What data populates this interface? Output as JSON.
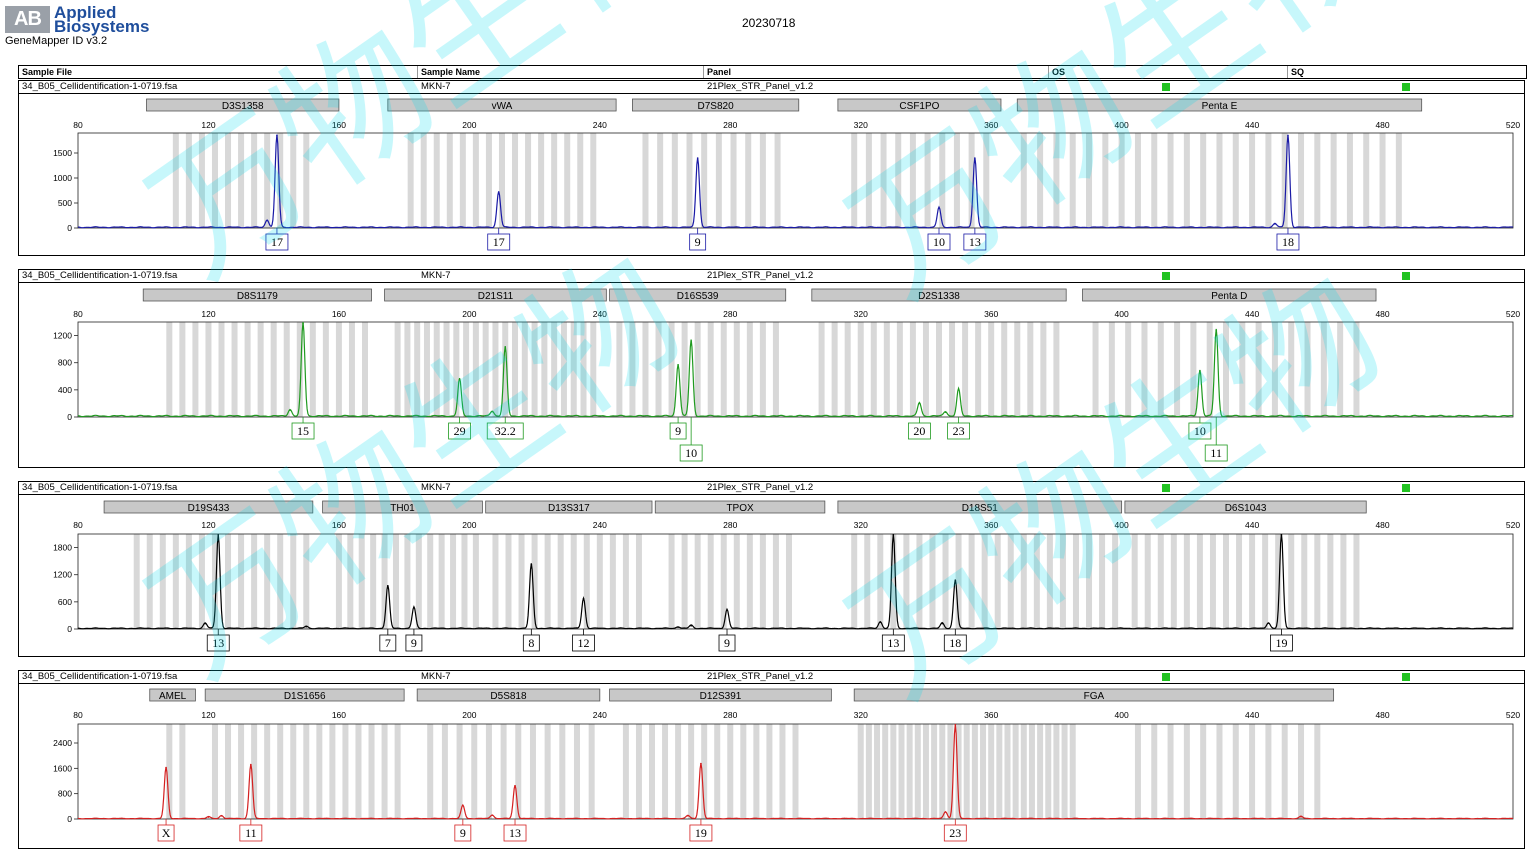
{
  "brand": {
    "logo_mark": "AB",
    "line1": "Applied",
    "line2": "Biosystems",
    "product": "GeneMapper ID v3.2"
  },
  "report_date": "20230718",
  "header": {
    "sample_file": "Sample File",
    "sample_name": "Sample Name",
    "panel": "Panel",
    "os": "OS",
    "sq": "SQ"
  },
  "panels": [
    {
      "file": "34_B05_Cellidentification-1-0719.fsa",
      "sample": "MKN-7",
      "kit": "21Plex_STR_Panel_v1.2"
    },
    {
      "file": "34_B05_Cellidentification-1-0719.fsa",
      "sample": "MKN-7",
      "kit": "21Plex_STR_Panel_v1.2"
    },
    {
      "file": "34_B05_Cellidentification-1-0719.fsa",
      "sample": "MKN-7",
      "kit": "21Plex_STR_Panel_v1.2"
    },
    {
      "file": "34_B05_Cellidentification-1-0719.fsa",
      "sample": "MKN-7",
      "kit": "21Plex_STR_Panel_v1.2"
    }
  ],
  "watermark": "万物生物",
  "chart_data": [
    {
      "type": "line",
      "dye": "blue",
      "color": "#1a1aa6",
      "xlim": [
        80,
        520
      ],
      "xticks": [
        80,
        120,
        160,
        200,
        240,
        280,
        320,
        360,
        400,
        440,
        480,
        520
      ],
      "ylim": [
        0,
        1900
      ],
      "yticks": [
        0,
        500,
        1000,
        1500
      ],
      "markers": [
        {
          "label": "D3S1358",
          "x0": 101,
          "x1": 160
        },
        {
          "label": "vWA",
          "x0": 175,
          "x1": 245
        },
        {
          "label": "D7S820",
          "x0": 250,
          "x1": 301
        },
        {
          "label": "CSF1PO",
          "x0": 313,
          "x1": 363
        },
        {
          "label": "Penta E",
          "x0": 368,
          "x1": 492
        }
      ],
      "bins": [
        [
          110,
          152,
          4
        ],
        [
          182,
          240,
          4
        ],
        [
          254,
          298,
          4.5
        ],
        [
          318,
          360,
          4.5
        ],
        [
          370,
          488,
          5
        ]
      ],
      "peaks": [
        {
          "x": 138,
          "h": 150
        },
        {
          "x": 141,
          "h": 1850,
          "allele": "17"
        },
        {
          "x": 209,
          "h": 720,
          "allele": "17"
        },
        {
          "x": 270,
          "h": 1400,
          "allele": "9"
        },
        {
          "x": 344,
          "h": 400,
          "allele": "10"
        },
        {
          "x": 355,
          "h": 1400,
          "allele": "13"
        },
        {
          "x": 447,
          "h": 80
        },
        {
          "x": 451,
          "h": 1850,
          "allele": "18"
        }
      ]
    },
    {
      "type": "line",
      "dye": "green",
      "color": "#1f9a1f",
      "xlim": [
        80,
        520
      ],
      "xticks": [
        80,
        120,
        160,
        200,
        240,
        280,
        320,
        360,
        400,
        440,
        480,
        520
      ],
      "ylim": [
        0,
        1400
      ],
      "yticks": [
        0,
        400,
        800,
        1200
      ],
      "markers": [
        {
          "label": "D8S1179",
          "x0": 100,
          "x1": 170
        },
        {
          "label": "D21S11",
          "x0": 174,
          "x1": 242
        },
        {
          "label": "D16S539",
          "x0": 243,
          "x1": 297
        },
        {
          "label": "D2S1338",
          "x0": 305,
          "x1": 383
        },
        {
          "label": "Penta D",
          "x0": 388,
          "x1": 478
        }
      ],
      "bins": [
        [
          108,
          168,
          4
        ],
        [
          178,
          240,
          3
        ],
        [
          246,
          296,
          4
        ],
        [
          308,
          380,
          4
        ],
        [
          392,
          476,
          5
        ]
      ],
      "peaks": [
        {
          "x": 145,
          "h": 100
        },
        {
          "x": 149,
          "h": 1380,
          "allele": "15"
        },
        {
          "x": 197,
          "h": 550,
          "allele": "29"
        },
        {
          "x": 207,
          "h": 80
        },
        {
          "x": 211,
          "h": 1020,
          "allele": "32.2"
        },
        {
          "x": 264,
          "h": 770,
          "allele": "9"
        },
        {
          "x": 268,
          "h": 1120,
          "allele": "10"
        },
        {
          "x": 338,
          "h": 200,
          "allele": "20"
        },
        {
          "x": 346,
          "h": 70
        },
        {
          "x": 350,
          "h": 400,
          "allele": "23"
        },
        {
          "x": 424,
          "h": 680,
          "allele": "10"
        },
        {
          "x": 429,
          "h": 1280,
          "allele": "11"
        }
      ],
      "label_row2": [
        "10",
        "11"
      ]
    },
    {
      "type": "line",
      "dye": "black",
      "color": "#000000",
      "xlim": [
        80,
        520
      ],
      "xticks": [
        80,
        120,
        160,
        200,
        240,
        280,
        320,
        360,
        400,
        440,
        480,
        520
      ],
      "ylim": [
        0,
        2100
      ],
      "yticks": [
        0,
        600,
        1200,
        1800
      ],
      "markers": [
        {
          "label": "D19S433",
          "x0": 88,
          "x1": 152
        },
        {
          "label": "TH01",
          "x0": 155,
          "x1": 204
        },
        {
          "label": "D13S317",
          "x0": 205,
          "x1": 256
        },
        {
          "label": "TPOX",
          "x0": 257,
          "x1": 309
        },
        {
          "label": "D18S51",
          "x0": 313,
          "x1": 400
        },
        {
          "label": "D6S1043",
          "x0": 401,
          "x1": 475
        }
      ],
      "bins": [
        [
          98,
          150,
          4
        ],
        [
          160,
          202,
          3.5
        ],
        [
          208,
          254,
          4
        ],
        [
          262,
          300,
          4
        ],
        [
          318,
          398,
          4
        ],
        [
          404,
          472,
          4
        ]
      ],
      "peaks": [
        {
          "x": 119,
          "h": 120
        },
        {
          "x": 123,
          "h": 2080,
          "allele": "13"
        },
        {
          "x": 150,
          "h": 50
        },
        {
          "x": 175,
          "h": 950,
          "allele": "7"
        },
        {
          "x": 183,
          "h": 470,
          "allele": "9"
        },
        {
          "x": 219,
          "h": 1430,
          "allele": "8"
        },
        {
          "x": 235,
          "h": 670,
          "allele": "12"
        },
        {
          "x": 264,
          "h": 40
        },
        {
          "x": 268,
          "h": 70
        },
        {
          "x": 279,
          "h": 420,
          "allele": "9"
        },
        {
          "x": 326,
          "h": 150
        },
        {
          "x": 330,
          "h": 2080,
          "allele": "13"
        },
        {
          "x": 345,
          "h": 120
        },
        {
          "x": 349,
          "h": 1080,
          "allele": "18"
        },
        {
          "x": 445,
          "h": 130
        },
        {
          "x": 449,
          "h": 2080,
          "allele": "19"
        }
      ]
    },
    {
      "type": "line",
      "dye": "red",
      "color": "#d42020",
      "xlim": [
        80,
        520
      ],
      "xticks": [
        80,
        120,
        160,
        200,
        240,
        280,
        320,
        360,
        400,
        440,
        480,
        520
      ],
      "ylim": [
        0,
        3000
      ],
      "yticks": [
        0,
        800,
        1600,
        2400
      ],
      "markers": [
        {
          "label": "AMEL",
          "x0": 102,
          "x1": 116
        },
        {
          "label": "D1S1656",
          "x0": 119,
          "x1": 180
        },
        {
          "label": "D5S818",
          "x0": 184,
          "x1": 240
        },
        {
          "label": "D12S391",
          "x0": 243,
          "x1": 311
        },
        {
          "label": "FGA",
          "x0": 318,
          "x1": 465
        }
      ],
      "bins": [
        [
          108,
          112,
          4
        ],
        [
          122,
          178,
          4
        ],
        [
          188,
          238,
          4.5
        ],
        [
          248,
          300,
          4
        ],
        [
          320,
          385,
          2.5
        ],
        [
          405,
          460,
          5
        ]
      ],
      "peaks": [
        {
          "x": 107,
          "h": 1620,
          "allele": "X"
        },
        {
          "x": 120,
          "h": 60
        },
        {
          "x": 124,
          "h": 100
        },
        {
          "x": 133,
          "h": 1720,
          "allele": "11"
        },
        {
          "x": 198,
          "h": 420,
          "allele": "9"
        },
        {
          "x": 207,
          "h": 120
        },
        {
          "x": 214,
          "h": 1050,
          "allele": "13"
        },
        {
          "x": 267,
          "h": 100
        },
        {
          "x": 271,
          "h": 1750,
          "allele": "19"
        },
        {
          "x": 346,
          "h": 220
        },
        {
          "x": 349,
          "h": 2980,
          "allele": "23"
        },
        {
          "x": 455,
          "h": 70
        }
      ]
    }
  ]
}
